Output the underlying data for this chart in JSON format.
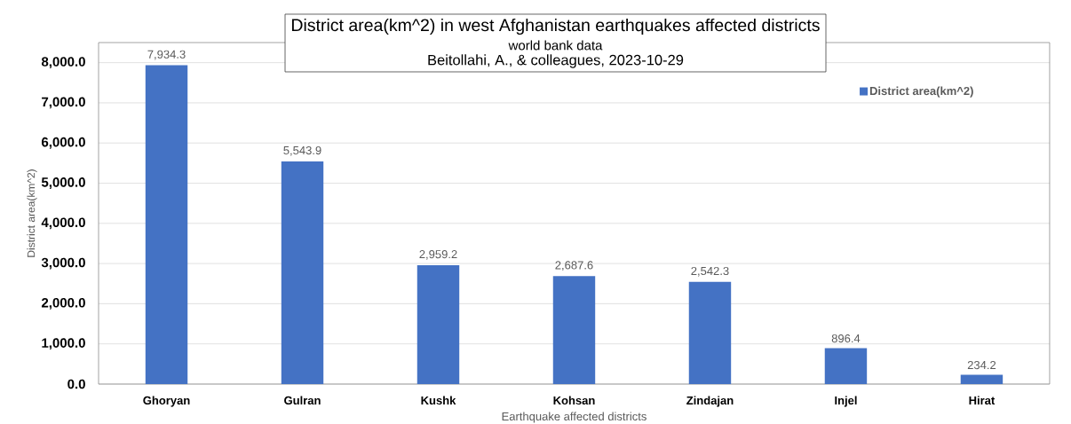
{
  "chart_data": {
    "type": "bar",
    "title": "District area(km^2) in west Afghanistan earthquakes affected districts",
    "subtitle": "world bank data",
    "annotations": [
      "Beitollahi, A., & colleagues, 2023-10-29"
    ],
    "xlabel": "Earthquake affected districts",
    "ylabel": "District area(km^2)",
    "categories": [
      "Ghoryan",
      "Gulran",
      "Kushk",
      "Kohsan",
      "Zindajan",
      "Injel",
      "Hirat"
    ],
    "series": [
      {
        "name": "District area(km^2)",
        "color": "#4472c4",
        "values": [
          7934.3,
          5543.9,
          2959.2,
          2687.6,
          2542.3,
          896.4,
          234.2
        ],
        "value_labels": [
          "7,934.3",
          "5,543.9",
          "2,959.2",
          "2,687.6",
          "2,542.3",
          "896.4",
          "234.2"
        ]
      }
    ],
    "ylim": [
      0,
      8500
    ],
    "yticks": [
      {
        "value": 0,
        "label": "0.0"
      },
      {
        "value": 1000,
        "label": "1,000.0"
      },
      {
        "value": 2000,
        "label": "2,000.0"
      },
      {
        "value": 3000,
        "label": "3,000.0"
      },
      {
        "value": 4000,
        "label": "4,000.0"
      },
      {
        "value": 5000,
        "label": "5,000.0"
      },
      {
        "value": 6000,
        "label": "6,000.0"
      },
      {
        "value": 7000,
        "label": "7,000.0"
      },
      {
        "value": 8000,
        "label": "8,000.0"
      }
    ],
    "grid": "y",
    "legend": "top right"
  }
}
